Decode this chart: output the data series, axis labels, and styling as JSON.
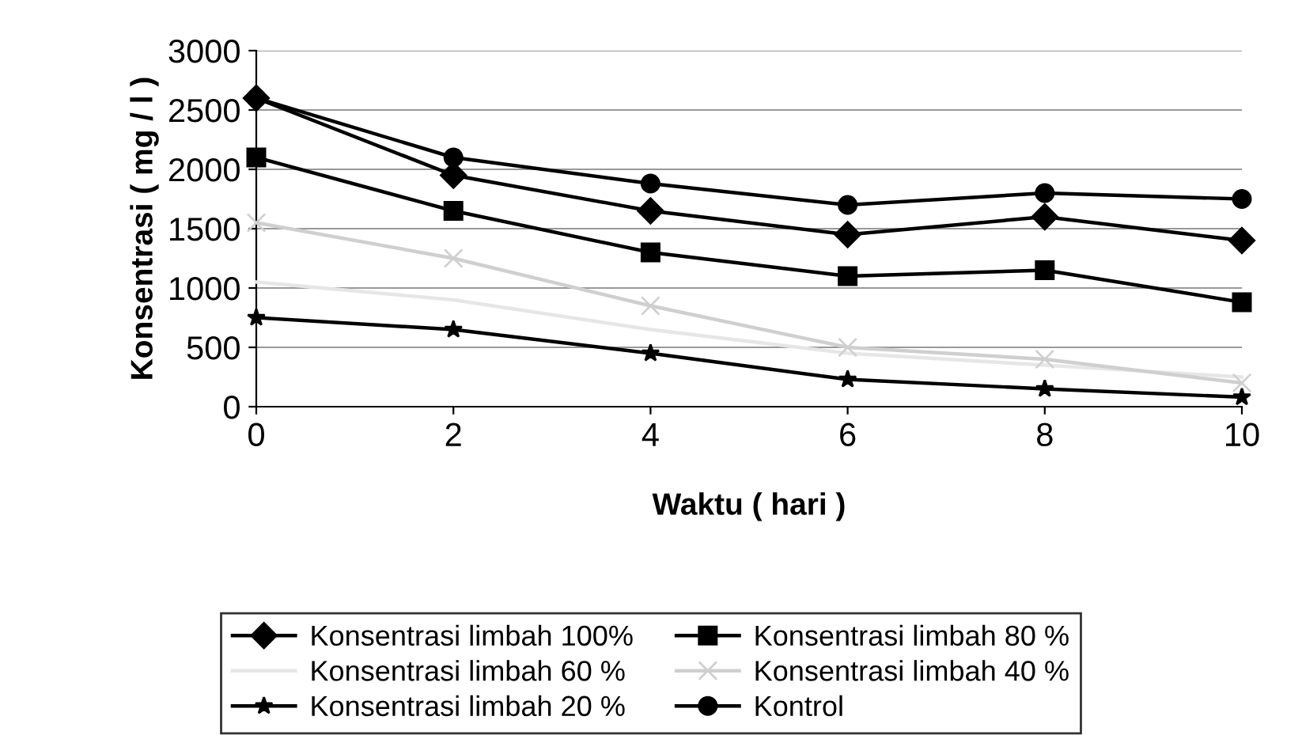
{
  "chart_data": {
    "type": "line",
    "xlabel": "Waktu ( hari )",
    "ylabel": "Konsentrasi ( mg / l )",
    "x": [
      0,
      2,
      4,
      6,
      8,
      10
    ],
    "xlim": [
      0,
      10
    ],
    "xticks": [
      0,
      2,
      4,
      6,
      8,
      10
    ],
    "ylim": [
      0,
      3000
    ],
    "yticks": [
      0,
      500,
      1000,
      1500,
      2000,
      2500,
      3000
    ],
    "grid": "y",
    "legend": "bottom",
    "series": [
      {
        "name": "Konsentrasi limbah 100%",
        "color": "#000000",
        "marker": "diamond",
        "values": [
          2600,
          1950,
          1650,
          1450,
          1600,
          1400
        ]
      },
      {
        "name": "Konsentrasi limbah 80 %",
        "color": "#000000",
        "marker": "square",
        "values": [
          2100,
          1650,
          1300,
          1100,
          1150,
          880
        ]
      },
      {
        "name": "Konsentrasi limbah 60 %",
        "color": "#e6e6e6",
        "marker": "none",
        "values": [
          1050,
          900,
          650,
          450,
          350,
          250
        ]
      },
      {
        "name": "Konsentrasi limbah 40 %",
        "color": "#cfcfcf",
        "marker": "cross",
        "values": [
          1550,
          1250,
          850,
          500,
          400,
          200
        ]
      },
      {
        "name": "Konsentrasi limbah 20 %",
        "color": "#000000",
        "marker": "star",
        "values": [
          750,
          650,
          450,
          230,
          150,
          80
        ]
      },
      {
        "name": "Kontrol",
        "color": "#000000",
        "marker": "circle",
        "values": [
          2600,
          2100,
          1880,
          1700,
          1800,
          1750
        ]
      }
    ]
  }
}
